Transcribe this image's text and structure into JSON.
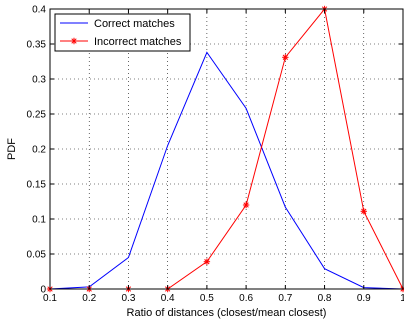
{
  "chart_data": {
    "type": "line",
    "title": "",
    "xlabel": "Ratio of distances (closest/mean closest)",
    "ylabel": "PDF",
    "xlim": [
      0.1,
      1
    ],
    "ylim": [
      0,
      0.4
    ],
    "grid": true,
    "legend_position": "top-left",
    "x_ticks": [
      0.1,
      0.2,
      0.3,
      0.4,
      0.5,
      0.6,
      0.7,
      0.8,
      0.9,
      1
    ],
    "x_tick_labels": [
      "0.1",
      "0.2",
      "0.3",
      "0.4",
      "0.5",
      "0.6",
      "0.7",
      "0.8",
      "0.9",
      "1"
    ],
    "y_ticks": [
      0,
      0.05,
      0.1,
      0.15,
      0.2,
      0.25,
      0.3,
      0.35,
      0.4
    ],
    "y_tick_labels": [
      "0",
      "0.05",
      "0.1",
      "0.15",
      "0.2",
      "0.25",
      "0.3",
      "0.35",
      "0.4"
    ],
    "x": [
      0.1,
      0.2,
      0.3,
      0.4,
      0.5,
      0.6,
      0.7,
      0.8,
      0.9,
      1
    ],
    "series": [
      {
        "name": "Correct matches",
        "color": "#0000ff",
        "marker": "none",
        "values": [
          0,
          0.003,
          0.045,
          0.205,
          0.338,
          0.258,
          0.117,
          0.029,
          0.002,
          0
        ]
      },
      {
        "name": "Incorrect matches",
        "color": "#ff0000",
        "marker": "asterisk",
        "values": [
          0,
          0,
          0,
          0,
          0.039,
          0.12,
          0.331,
          0.4,
          0.111,
          0
        ]
      }
    ]
  }
}
